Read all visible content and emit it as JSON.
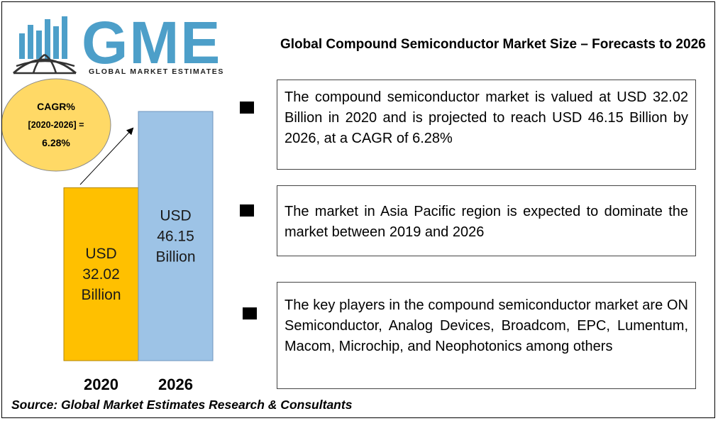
{
  "logo": {
    "letters": "GME",
    "tagline": "GLOBAL MARKET ESTIMATES",
    "brand_color": "#4d9fc9",
    "icon": "globe-bars-icon"
  },
  "title": "Global Compound Semiconductor Market Size – Forecasts to 2026",
  "chart_data": {
    "type": "bar",
    "categories": [
      "2020",
      "2026"
    ],
    "values": [
      32.02,
      46.15
    ],
    "value_labels": [
      [
        "USD",
        "32.02",
        "Billion"
      ],
      [
        "USD",
        "46.15",
        "Billion"
      ]
    ],
    "colors": [
      "#ffc000",
      "#9dc3e6"
    ],
    "cagr": {
      "line1": "CAGR%",
      "line2": "[2020-2026] =",
      "line3": "6.28%",
      "fill": "#ffd966"
    }
  },
  "info": [
    {
      "text": "The compound semiconductor market is valued at USD 32.02 Billion in 2020 and is projected to reach USD 46.15 Billion by 2026, at a CAGR of 6.28%"
    },
    {
      "text": "The market in Asia Pacific region is expected to dominate the market between 2019 and 2026"
    },
    {
      "text": "The key players in the compound semiconductor market are ON Semiconductor, Analog Devices, Broadcom, EPC, Lumentum, Macom, Microchip, and Neophotonics among others"
    }
  ],
  "source": "Source: Global Market Estimates Research & Consultants"
}
